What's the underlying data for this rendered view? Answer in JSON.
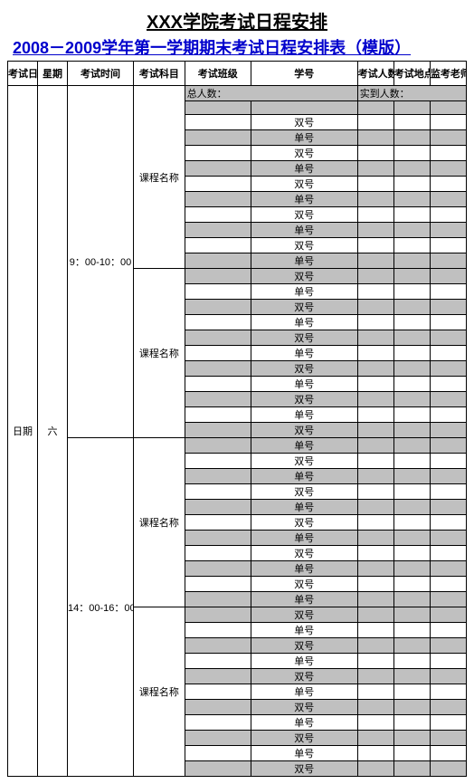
{
  "title": "XXX学院考试日程安排",
  "subtitle": "2008－2009学年第一学期期末考试日程安排表（模版）",
  "headers": {
    "date": "考试日期",
    "week": "星期",
    "time": "考试时间",
    "course": "考试科目",
    "class": "考试班级",
    "student_id": "学号",
    "num": "考试人数",
    "loc": "考试地点",
    "teacher": "监考老师"
  },
  "info_row": {
    "total_label": "总人数：",
    "actual_label": "实到人数："
  },
  "body": {
    "date": "日期",
    "week": "六",
    "time_slots": [
      "9：00-10：00",
      "14：00-16：00"
    ],
    "course_label": "课程名称",
    "id_single": "单号",
    "id_double": "双号"
  },
  "colors": {
    "shaded": "#c0c0c0",
    "border": "#000000",
    "subtitle": "#0000cc"
  },
  "structure": {
    "sessions": 2,
    "courses_per_session": 2,
    "rows_per_course": 11
  }
}
